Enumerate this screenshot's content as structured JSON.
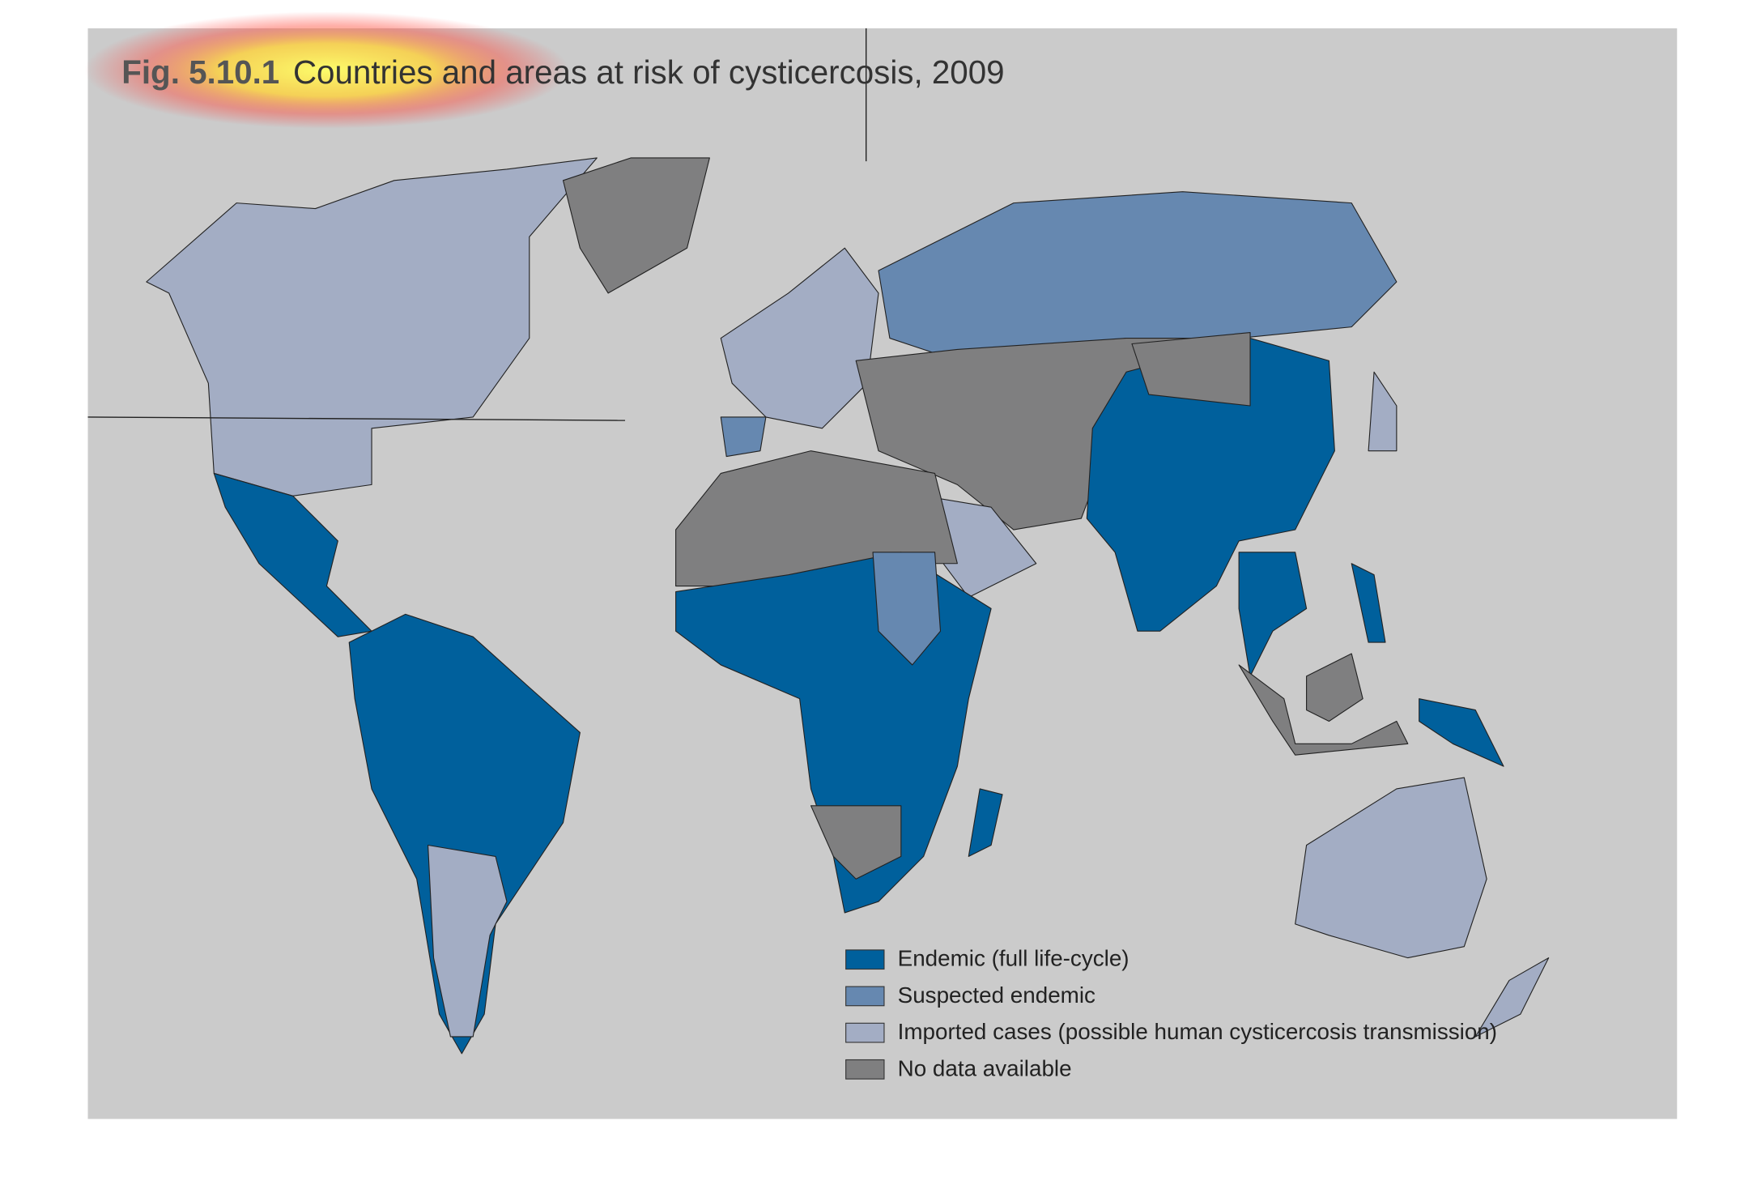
{
  "header": {
    "figure_number": "Fig. 5.10.1",
    "title": "Countries and areas at risk of cysticercosis, 2009"
  },
  "legend": [
    {
      "label": "Endemic (full life-cycle)",
      "color": "#00609c"
    },
    {
      "label": "Suspected endemic",
      "color": "#6688b0"
    },
    {
      "label": "Imported cases (possible human cysticercosis transmission)",
      "color": "#a3adc4"
    },
    {
      "label": "No data available",
      "color": "#7f7f80"
    }
  ]
}
